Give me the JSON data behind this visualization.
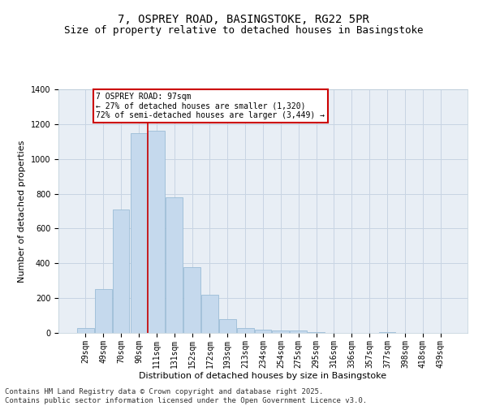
{
  "title_line1": "7, OSPREY ROAD, BASINGSTOKE, RG22 5PR",
  "title_line2": "Size of property relative to detached houses in Basingstoke",
  "xlabel": "Distribution of detached houses by size in Basingstoke",
  "ylabel": "Number of detached properties",
  "categories": [
    "29sqm",
    "49sqm",
    "70sqm",
    "90sqm",
    "111sqm",
    "131sqm",
    "152sqm",
    "172sqm",
    "193sqm",
    "213sqm",
    "234sqm",
    "254sqm",
    "275sqm",
    "295sqm",
    "316sqm",
    "336sqm",
    "357sqm",
    "377sqm",
    "398sqm",
    "418sqm",
    "439sqm"
  ],
  "values": [
    30,
    250,
    710,
    1150,
    1160,
    780,
    380,
    220,
    80,
    30,
    20,
    15,
    15,
    5,
    0,
    0,
    0,
    5,
    0,
    0,
    0
  ],
  "bar_color": "#c5d9ed",
  "bar_edge_color": "#9bbcd6",
  "vline_color": "#cc0000",
  "vline_x_index": 3.5,
  "annotation_text": "7 OSPREY ROAD: 97sqm\n← 27% of detached houses are smaller (1,320)\n72% of semi-detached houses are larger (3,449) →",
  "annotation_box_color": "#cc0000",
  "ylim": [
    0,
    1400
  ],
  "yticks": [
    0,
    200,
    400,
    600,
    800,
    1000,
    1200,
    1400
  ],
  "grid_color": "#c8d4e3",
  "bg_color": "#e8eef5",
  "footer_line1": "Contains HM Land Registry data © Crown copyright and database right 2025.",
  "footer_line2": "Contains public sector information licensed under the Open Government Licence v3.0.",
  "title_fontsize": 10,
  "subtitle_fontsize": 9,
  "axis_label_fontsize": 8,
  "tick_fontsize": 7,
  "annotation_fontsize": 7,
  "footer_fontsize": 6.5
}
